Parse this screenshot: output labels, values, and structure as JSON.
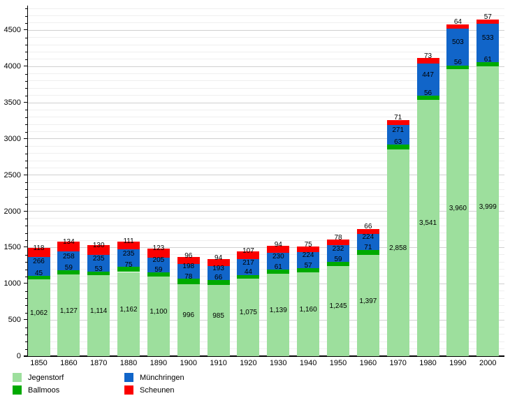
{
  "chart_data": {
    "type": "bar",
    "stacked": true,
    "title": "",
    "xlabel": "",
    "ylabel": "",
    "categories": [
      "1850",
      "1860",
      "1870",
      "1880",
      "1890",
      "1900",
      "1910",
      "1920",
      "1930",
      "1940",
      "1950",
      "1960",
      "1970",
      "1980",
      "1990",
      "2000"
    ],
    "series": [
      {
        "name": "Jegenstorf",
        "color": "#9ddf9d",
        "values": [
          1062,
          1127,
          1114,
          1162,
          1100,
          996,
          985,
          1075,
          1139,
          1160,
          1245,
          1397,
          2858,
          3541,
          3960,
          3999
        ]
      },
      {
        "name": "Ballmoos",
        "color": "#00aa00",
        "values": [
          45,
          59,
          53,
          75,
          59,
          78,
          66,
          44,
          61,
          57,
          59,
          71,
          63,
          56,
          56,
          61
        ]
      },
      {
        "name": "Münchringen",
        "color": "#1165c9",
        "values": [
          266,
          258,
          235,
          235,
          205,
          198,
          193,
          217,
          230,
          224,
          232,
          224,
          271,
          447,
          503,
          533
        ]
      },
      {
        "name": "Scheunen",
        "color": "#fb0000",
        "values": [
          118,
          134,
          130,
          111,
          123,
          96,
          94,
          107,
          94,
          75,
          78,
          66,
          71,
          73,
          64,
          57
        ]
      }
    ],
    "ylim": [
      0,
      4800
    ],
    "y_major_step": 500,
    "y_minor_step": 100,
    "y_tick_labels": [
      "0",
      "500",
      "1000",
      "1500",
      "2000",
      "2500",
      "3000",
      "3500",
      "4000",
      "4500"
    ],
    "grid": true,
    "value_labels": true,
    "legend_position": "bottom-left",
    "background_color": "#ffffff",
    "axis_color": "#000000"
  }
}
